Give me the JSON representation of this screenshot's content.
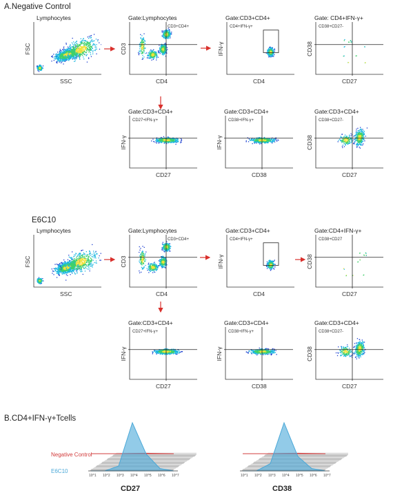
{
  "sections": {
    "a_title": "A.Negative Control",
    "e6c10_title": "E6C10",
    "b_title": "B.CD4+IFN-γ+Tcells"
  },
  "neg_row1": [
    {
      "gate": "Lymphocytes",
      "xlabel": "SSC",
      "ylabel": "FSC",
      "quad": ""
    },
    {
      "gate": "Gate:Lymphocytes",
      "xlabel": "CD4",
      "ylabel": "CD3",
      "quad": "CD3+CD4+"
    },
    {
      "gate": "Gate:CD3+CD4+",
      "xlabel": "CD4",
      "ylabel": "IFN-γ",
      "quad": "CD4+IFN-γ+"
    },
    {
      "gate": "Gate:  CD4+IFN-γ+",
      "xlabel": "CD27",
      "ylabel": "CD38",
      "quad": "CD38+CD27-"
    }
  ],
  "neg_row2": [
    {
      "gate": "Gate:CD3+CD4+",
      "xlabel": "CD27",
      "ylabel": "IFN-γ",
      "quad": "CD27+IFN-γ+"
    },
    {
      "gate": "Gate:CD3+CD4+",
      "xlabel": "CD38",
      "ylabel": "IFN-γ",
      "quad": "CD38+IFN-γ+"
    },
    {
      "gate": "Gate:CD3+CD4+",
      "xlabel": "CD27",
      "ylabel": "CD38",
      "quad": "CD38+CD27-"
    }
  ],
  "e6_row1": [
    {
      "gate": "Lymphocytes",
      "xlabel": "SSC",
      "ylabel": "FSC",
      "quad": ""
    },
    {
      "gate": "Gate:Lymphocytes",
      "xlabel": "CD4",
      "ylabel": "CD3",
      "quad": "CD3+CD4+"
    },
    {
      "gate": "Gate:CD3+CD4+",
      "xlabel": "CD4",
      "ylabel": "IFN-γ",
      "quad": "CD4+IFN-γ+"
    },
    {
      "gate": "Gate:CD4+IFN-γ+",
      "xlabel": "CD27",
      "ylabel": "CD38",
      "quad": "CD38+CD27"
    }
  ],
  "e6_row2": [
    {
      "gate": "Gate:CD3+CD4+",
      "xlabel": "CD27",
      "ylabel": "IFN-γ",
      "quad": "CD27+IFN-γ+"
    },
    {
      "gate": "Gate:CD3+CD4+",
      "xlabel": "CD38",
      "ylabel": "IFN-γ",
      "quad": "CD38+IFN-γ+"
    },
    {
      "gate": "Gate:CD3+CD4+",
      "xlabel": "CD27",
      "ylabel": "CD38",
      "quad": "CD38+CD27-"
    }
  ],
  "histograms": {
    "legend_negative": "Negative Control",
    "legend_e6c10": "E6C10",
    "colors": {
      "negative": "#d23b3b",
      "e6c10": "#4aa8d8"
    },
    "ticks": [
      "10^1",
      "10^2",
      "10^3",
      "10^4",
      "10^5",
      "10^6",
      "10^7"
    ],
    "plots": [
      {
        "label": "CD27"
      },
      {
        "label": "CD38"
      }
    ]
  },
  "chart_data": [
    {
      "type": "scatter",
      "title": "Lymphocytes",
      "xlabel": "SSC",
      "ylabel": "FSC",
      "x": [],
      "y": []
    },
    {
      "type": "area",
      "title": "CD27",
      "xlabel": "",
      "ylabel": "",
      "x": [
        1,
        2,
        3,
        4,
        5,
        6,
        7
      ],
      "series": [
        {
          "name": "Negative Control",
          "values": [
            0,
            0,
            0,
            0.02,
            0.03,
            0.01,
            0
          ]
        },
        {
          "name": "E6C10",
          "values": [
            0,
            0,
            0.1,
            1.0,
            0.35,
            0.05,
            0
          ]
        }
      ]
    },
    {
      "type": "area",
      "title": "CD38",
      "xlabel": "",
      "ylabel": "",
      "x": [
        1,
        2,
        3,
        4,
        5,
        6,
        7
      ],
      "series": [
        {
          "name": "Negative Control",
          "values": [
            0,
            0,
            0,
            0.02,
            0.03,
            0.01,
            0
          ]
        },
        {
          "name": "E6C10",
          "values": [
            0,
            0,
            0.15,
            1.0,
            0.3,
            0.05,
            0
          ]
        }
      ]
    }
  ]
}
